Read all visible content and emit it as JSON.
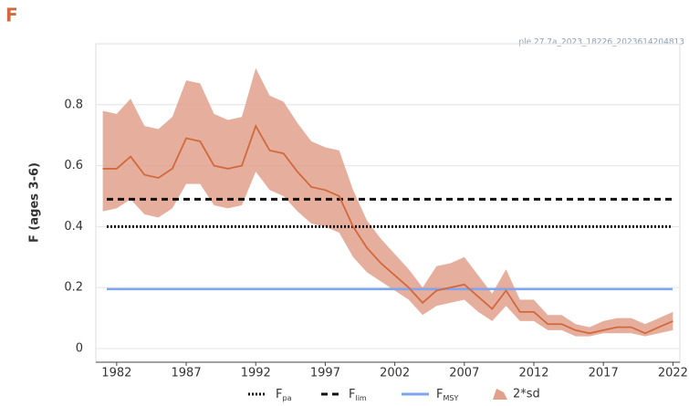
{
  "chart_data": {
    "type": "line",
    "panel_label": "F",
    "subtitle": "ple.27.7a_2023_18226_2023614204813",
    "y_label": "F (ages 3-6)",
    "x": [
      1981,
      1982,
      1983,
      1984,
      1985,
      1986,
      1987,
      1988,
      1989,
      1990,
      1991,
      1992,
      1993,
      1994,
      1995,
      1996,
      1997,
      1998,
      1999,
      2000,
      2001,
      2002,
      2003,
      2004,
      2005,
      2006,
      2007,
      2008,
      2009,
      2010,
      2011,
      2012,
      2013,
      2014,
      2015,
      2016,
      2017,
      2018,
      2019,
      2020,
      2021,
      2022
    ],
    "estimate": {
      "color": "#d2693c",
      "values": [
        0.59,
        0.59,
        0.63,
        0.57,
        0.56,
        0.59,
        0.69,
        0.68,
        0.6,
        0.59,
        0.6,
        0.73,
        0.65,
        0.64,
        0.58,
        0.53,
        0.52,
        0.5,
        0.4,
        0.33,
        0.28,
        0.24,
        0.2,
        0.15,
        0.19,
        0.2,
        0.21,
        0.17,
        0.13,
        0.19,
        0.12,
        0.12,
        0.08,
        0.08,
        0.06,
        0.05,
        0.06,
        0.07,
        0.07,
        0.05,
        0.07,
        0.09
      ]
    },
    "band": {
      "name": "2*sd",
      "color": "#e0a08c",
      "upper": [
        0.78,
        0.77,
        0.82,
        0.73,
        0.72,
        0.76,
        0.88,
        0.87,
        0.77,
        0.75,
        0.76,
        0.92,
        0.83,
        0.81,
        0.74,
        0.68,
        0.66,
        0.65,
        0.52,
        0.42,
        0.36,
        0.31,
        0.26,
        0.2,
        0.27,
        0.28,
        0.3,
        0.24,
        0.18,
        0.26,
        0.16,
        0.16,
        0.11,
        0.11,
        0.08,
        0.07,
        0.09,
        0.1,
        0.1,
        0.08,
        0.1,
        0.12
      ],
      "lower": [
        0.45,
        0.46,
        0.49,
        0.44,
        0.43,
        0.46,
        0.54,
        0.54,
        0.47,
        0.46,
        0.47,
        0.58,
        0.52,
        0.5,
        0.45,
        0.41,
        0.4,
        0.38,
        0.3,
        0.25,
        0.22,
        0.19,
        0.16,
        0.11,
        0.14,
        0.15,
        0.16,
        0.12,
        0.09,
        0.14,
        0.09,
        0.09,
        0.06,
        0.06,
        0.04,
        0.04,
        0.05,
        0.05,
        0.05,
        0.04,
        0.05,
        0.06
      ]
    },
    "reference_lines": [
      {
        "name": "Fpa",
        "value": 0.4,
        "color": "#111111",
        "dash": "dotted"
      },
      {
        "name": "Flim",
        "value": 0.49,
        "color": "#111111",
        "dash": "dashed"
      },
      {
        "name": "FMSY",
        "value": 0.195,
        "color": "#7ea6ef",
        "dash": "solid"
      }
    ],
    "xlim": [
      1980.5,
      2022.5
    ],
    "xticks": [
      1982,
      1987,
      1992,
      1997,
      2002,
      2007,
      2012,
      2017,
      2022
    ],
    "ylim": [
      -0.045,
      1.0
    ],
    "yticks": [
      0,
      0.2,
      0.4,
      0.6,
      0.8
    ],
    "grid": true
  }
}
